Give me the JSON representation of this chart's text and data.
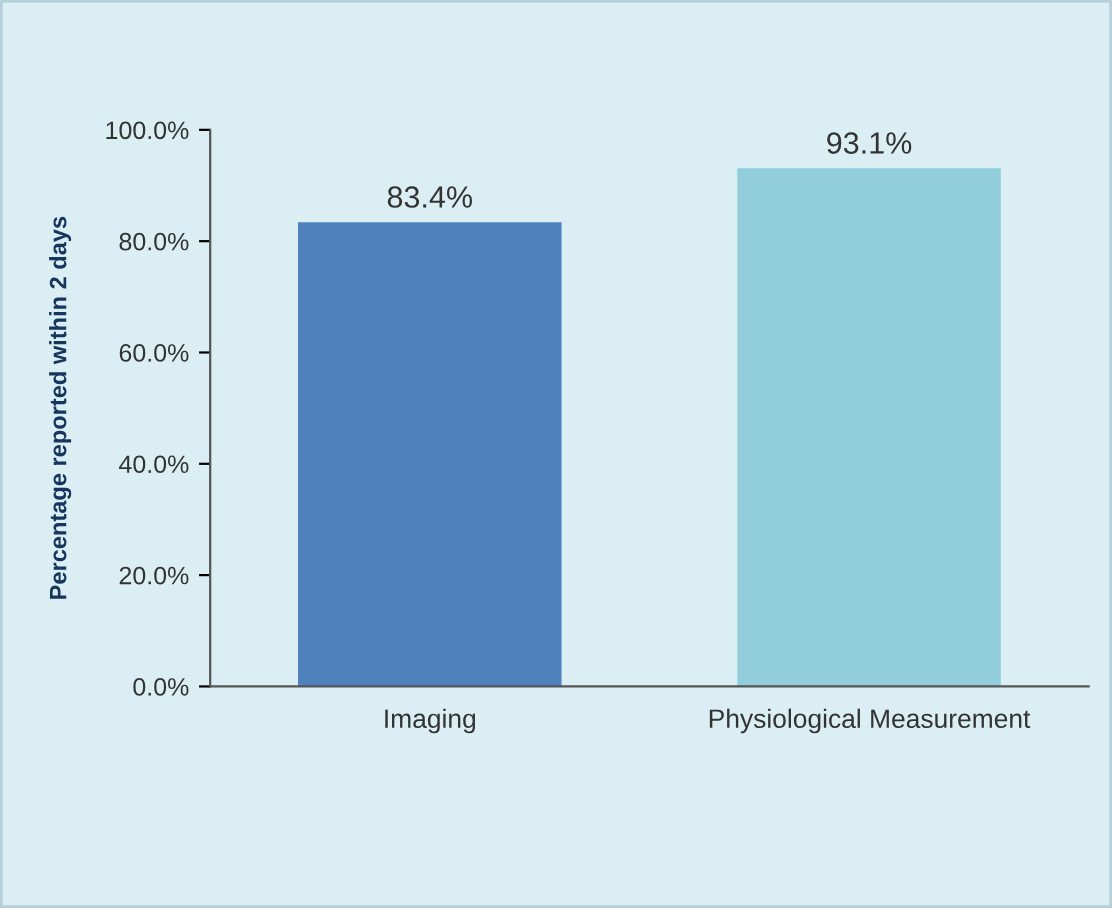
{
  "chart_data": {
    "type": "bar",
    "ylabel": "Percentage reported within 2 days",
    "categories": [
      "Imaging",
      "Physiological Measurement"
    ],
    "values": [
      83.4,
      93.1
    ],
    "colors": [
      "#4f81bd",
      "#92cddc"
    ],
    "value_labels": [
      "83.4%",
      "93.1%"
    ],
    "ylim": [
      0,
      100
    ],
    "yticks": [
      {
        "value": 0,
        "label": "0.0%"
      },
      {
        "value": 20,
        "label": "20.0%"
      },
      {
        "value": 40,
        "label": "40.0%"
      },
      {
        "value": 60,
        "label": "60.0%"
      },
      {
        "value": 80,
        "label": "80.0%"
      },
      {
        "value": 100,
        "label": "100.0%"
      }
    ],
    "grid": false,
    "legend": false
  }
}
